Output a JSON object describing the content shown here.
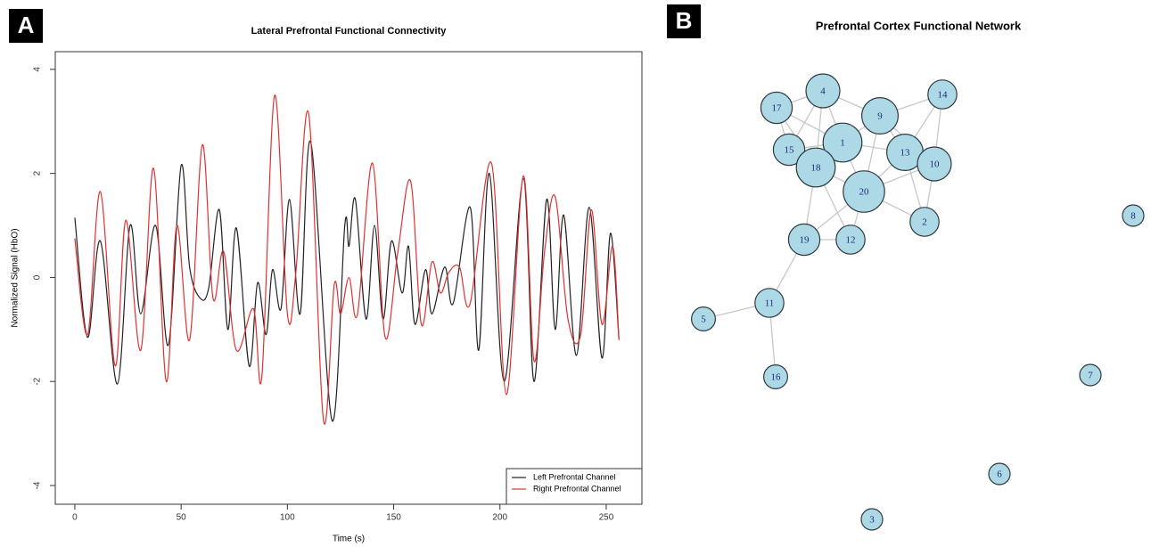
{
  "chart_data": [
    {
      "type": "line",
      "label": "A",
      "title": "Lateral Prefrontal Functional Connectivity",
      "xlabel": "Time (s)",
      "ylabel": "Normalized Signal (HbO)",
      "xlim": [
        -9.2,
        266.8
      ],
      "xticks": [
        0,
        50,
        100,
        150,
        200,
        250
      ],
      "ylim": [
        -4.36,
        4.34
      ],
      "yticks": [
        -4,
        -2,
        0,
        2,
        4
      ],
      "legend": "bottom-right",
      "series": [
        {
          "name": "Left Prefrontal Channel",
          "color": "#222222",
          "x": [
            0,
            6,
            12,
            20,
            26,
            31,
            38,
            44,
            50,
            54,
            59,
            63,
            68,
            72,
            76,
            82,
            86,
            90,
            93,
            97,
            101,
            106,
            111,
            121,
            127,
            129,
            132,
            137,
            141,
            145,
            149,
            154,
            157,
            160,
            165,
            168,
            174,
            178,
            186,
            190,
            195,
            202,
            211,
            216,
            222,
            226,
            230,
            236,
            242,
            248,
            252,
            256
          ],
          "values": [
            1.15,
            -1.15,
            0.7,
            -2.05,
            1.0,
            -0.7,
            1.0,
            -1.3,
            2.15,
            0.2,
            -0.4,
            -0.2,
            1.3,
            -1.0,
            0.95,
            -1.7,
            -0.1,
            -1.1,
            0.15,
            -0.6,
            1.5,
            -0.7,
            2.6,
            -2.75,
            1.0,
            0.6,
            1.5,
            -0.8,
            1.0,
            -0.8,
            0.7,
            -0.3,
            0.6,
            -0.9,
            0.15,
            -0.7,
            0.2,
            -0.5,
            1.35,
            -1.4,
            2.0,
            -2.0,
            1.9,
            -2.0,
            1.5,
            -1.0,
            1.2,
            -1.5,
            1.35,
            -1.55,
            0.85,
            -1.2
          ]
        },
        {
          "name": "Right Prefrontal Channel",
          "color": "#e03131",
          "x": [
            0,
            6,
            12,
            19,
            24,
            31,
            37,
            43,
            48,
            54,
            60,
            65,
            70,
            76,
            84,
            88,
            94,
            100,
            104,
            110,
            117,
            122,
            125,
            129,
            133,
            140,
            146,
            152,
            158,
            163,
            168,
            172,
            176,
            181,
            186,
            196,
            203,
            211,
            216,
            221,
            226,
            232,
            238,
            243,
            248,
            253,
            256
          ],
          "values": [
            0.75,
            -1.1,
            1.65,
            -1.7,
            1.1,
            -1.4,
            2.1,
            -2.0,
            1.0,
            -1.2,
            2.55,
            -0.4,
            0.5,
            -1.4,
            -0.6,
            -1.9,
            3.5,
            -0.7,
            0.1,
            3.15,
            -2.75,
            -0.15,
            -0.7,
            0.0,
            -0.7,
            2.2,
            -1.15,
            0.5,
            1.85,
            -0.9,
            0.3,
            -0.3,
            0.1,
            0.2,
            -0.5,
            2.2,
            -2.25,
            1.95,
            -1.6,
            0.5,
            1.55,
            -0.8,
            -1.1,
            1.3,
            -0.9,
            0.6,
            -1.2
          ]
        }
      ]
    },
    {
      "type": "network",
      "label": "B",
      "title": "Prefrontal Cortex Functional Network",
      "node_color": "#add8e6",
      "edge_color": "#c8c8c8",
      "nodes": [
        "4",
        "9",
        "14",
        "17",
        "1",
        "15",
        "13",
        "10",
        "18",
        "20",
        "2",
        "19",
        "12",
        "8",
        "11",
        "5",
        "16",
        "7",
        "6",
        "3"
      ],
      "edges": [
        [
          "4",
          "17"
        ],
        [
          "4",
          "1"
        ],
        [
          "4",
          "15"
        ],
        [
          "4",
          "9"
        ],
        [
          "4",
          "18"
        ],
        [
          "17",
          "15"
        ],
        [
          "17",
          "1"
        ],
        [
          "17",
          "18"
        ],
        [
          "9",
          "1"
        ],
        [
          "9",
          "13"
        ],
        [
          "9",
          "14"
        ],
        [
          "9",
          "20"
        ],
        [
          "9",
          "10"
        ],
        [
          "14",
          "13"
        ],
        [
          "14",
          "10"
        ],
        [
          "1",
          "15"
        ],
        [
          "1",
          "18"
        ],
        [
          "1",
          "20"
        ],
        [
          "1",
          "13"
        ],
        [
          "15",
          "18"
        ],
        [
          "18",
          "20"
        ],
        [
          "18",
          "19"
        ],
        [
          "18",
          "12"
        ],
        [
          "13",
          "20"
        ],
        [
          "13",
          "10"
        ],
        [
          "13",
          "2"
        ],
        [
          "10",
          "20"
        ],
        [
          "10",
          "2"
        ],
        [
          "20",
          "2"
        ],
        [
          "20",
          "19"
        ],
        [
          "20",
          "12"
        ],
        [
          "19",
          "12"
        ],
        [
          "19",
          "11"
        ],
        [
          "11",
          "5"
        ],
        [
          "11",
          "16"
        ]
      ]
    }
  ]
}
